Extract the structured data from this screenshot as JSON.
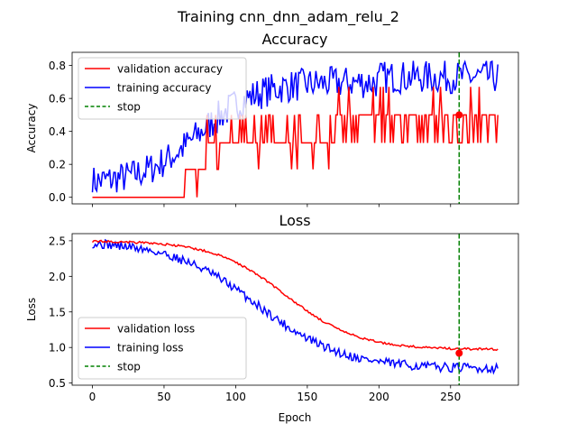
{
  "chart_data": {
    "type": "line",
    "suptitle": "Training cnn_dnn_adam_relu_2",
    "xlabel": "Epoch",
    "x_range": [
      0,
      283
    ],
    "x_ticks": [
      0,
      50,
      100,
      150,
      200,
      250
    ],
    "stop_epoch": 256,
    "colors": {
      "validation": "#ff0000",
      "training": "#0000ff",
      "stop": "#008000"
    },
    "subplots": [
      {
        "title": "Accuracy",
        "ylabel": "Accuracy",
        "ylim": [
          -0.04,
          0.88
        ],
        "y_ticks": [
          "0.0",
          "0.2",
          "0.4",
          "0.6",
          "0.8"
        ],
        "legend": [
          "validation accuracy",
          "training accuracy",
          "stop"
        ],
        "stop_marker_value": 0.5,
        "series": [
          {
            "name": "validation accuracy",
            "color": "#ff0000",
            "generator": "val_acc"
          },
          {
            "name": "training accuracy",
            "color": "#0000ff",
            "generator": "train_acc"
          }
        ]
      },
      {
        "title": "Loss",
        "ylabel": "Loss",
        "ylim": [
          0.47,
          2.6
        ],
        "y_ticks": [
          "0.5",
          "1.0",
          "1.5",
          "2.0",
          "2.5"
        ],
        "legend": [
          "validation loss",
          "training loss",
          "stop"
        ],
        "stop_marker_value": 0.92,
        "series": [
          {
            "name": "validation loss",
            "color": "#ff0000",
            "generator": "val_loss"
          },
          {
            "name": "training loss",
            "color": "#0000ff",
            "generator": "train_loss"
          }
        ]
      }
    ]
  }
}
